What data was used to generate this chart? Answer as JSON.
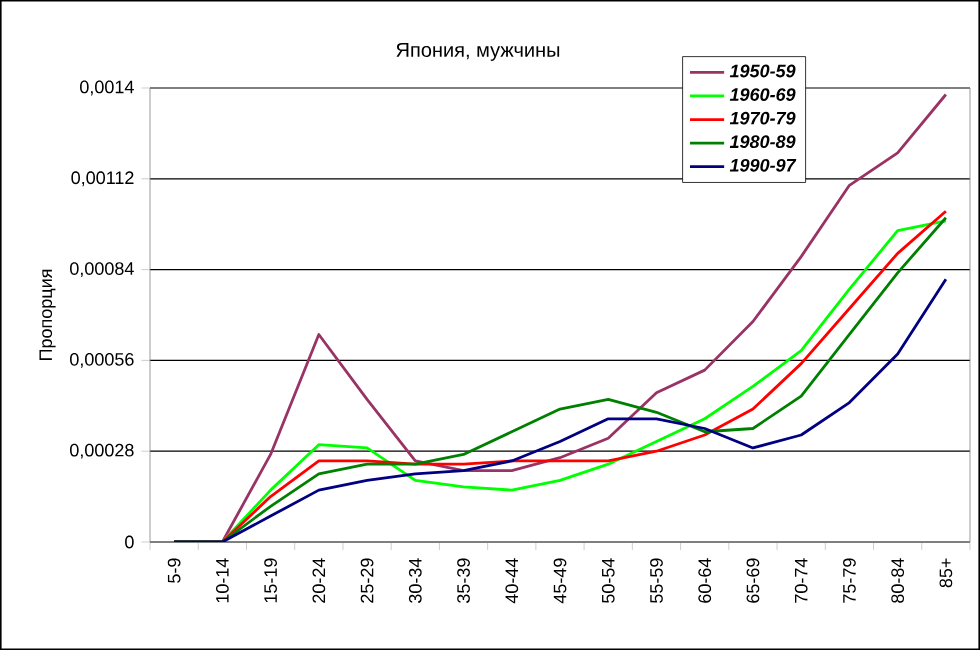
{
  "chart_data": {
    "type": "line",
    "title": "Япония, мужчины",
    "ylabel": "Пропорция",
    "categories": [
      "5-9",
      "10-14",
      "15-19",
      "20-24",
      "25-29",
      "30-34",
      "35-39",
      "40-44",
      "45-49",
      "50-54",
      "55-59",
      "60-64",
      "65-69",
      "70-74",
      "75-79",
      "80-84",
      "85+"
    ],
    "ylim": [
      0,
      0.0014
    ],
    "yticks": [
      {
        "value": 0,
        "label": "0"
      },
      {
        "value": 0.00028,
        "label": "0,00028"
      },
      {
        "value": 0.00056,
        "label": "0,00056"
      },
      {
        "value": 0.00084,
        "label": "0,00084"
      },
      {
        "value": 0.00112,
        "label": "0,00112"
      },
      {
        "value": 0.0014,
        "label": "0,0014"
      }
    ],
    "grid": "y",
    "legend": "top right",
    "marker": "none",
    "line_style": "solid",
    "series": [
      {
        "name": "1950-59",
        "color": "#993366",
        "values": [
          0,
          0,
          0.00027,
          0.00064,
          0.00044,
          0.00025,
          0.00022,
          0.00022,
          0.00026,
          0.00032,
          0.00046,
          0.00053,
          0.00068,
          0.00088,
          0.0011,
          0.0012,
          0.00138
        ]
      },
      {
        "name": "1960-69",
        "color": "#00ff00",
        "values": [
          0,
          0,
          0.00016,
          0.0003,
          0.00029,
          0.00019,
          0.00017,
          0.00016,
          0.00019,
          0.00024,
          0.00031,
          0.00038,
          0.00048,
          0.00059,
          0.00078,
          0.00096,
          0.00099
        ]
      },
      {
        "name": "1970-79",
        "color": "#ff0000",
        "values": [
          0,
          0,
          0.00014,
          0.00025,
          0.00025,
          0.00024,
          0.00024,
          0.00025,
          0.00025,
          0.00025,
          0.00028,
          0.00033,
          0.00041,
          0.00055,
          0.00072,
          0.00089,
          0.00102
        ]
      },
      {
        "name": "1980-89",
        "color": "#008000",
        "values": [
          0,
          0,
          0.00011,
          0.00021,
          0.00024,
          0.00024,
          0.00027,
          0.00034,
          0.00041,
          0.00044,
          0.0004,
          0.00034,
          0.00035,
          0.00045,
          0.00064,
          0.00083,
          0.001
        ]
      },
      {
        "name": "1990-97",
        "color": "#000080",
        "values": [
          0,
          0,
          8e-05,
          0.00016,
          0.00019,
          0.00021,
          0.00022,
          0.00025,
          0.00031,
          0.00038,
          0.00038,
          0.00035,
          0.00029,
          0.00033,
          0.00043,
          0.00058,
          0.00081
        ]
      }
    ]
  }
}
